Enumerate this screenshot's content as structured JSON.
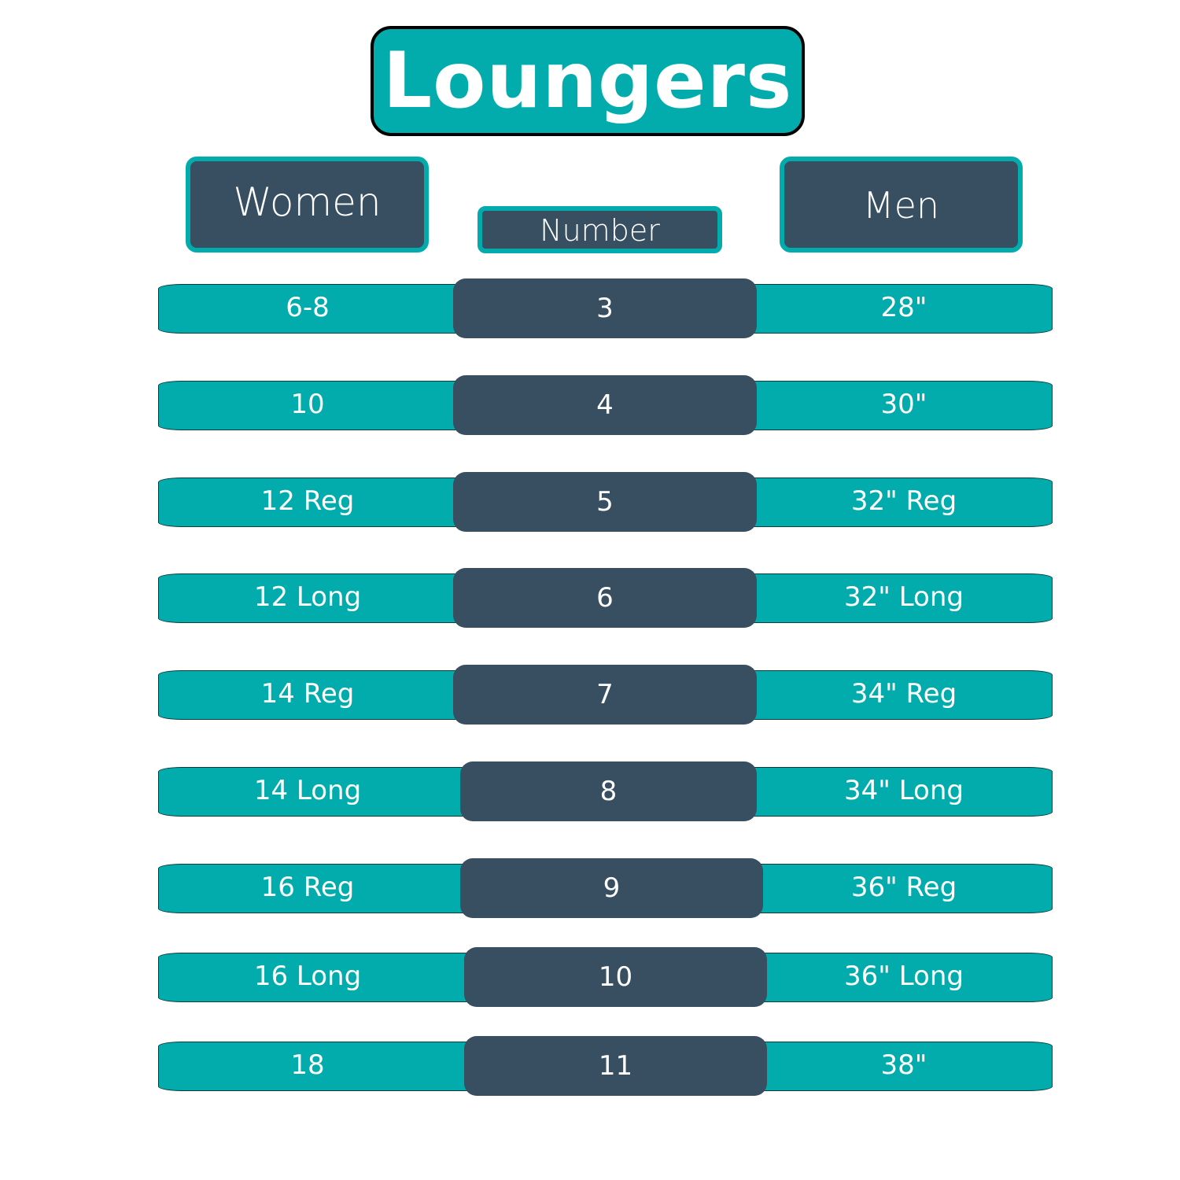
{
  "title": "Loungers",
  "headers": {
    "women": "Women",
    "number": "Number",
    "men": "Men"
  },
  "colors": {
    "teal": "#02acac",
    "slate": "#374f61"
  },
  "rows": [
    {
      "women": "6-8",
      "number": "3",
      "men": "28\""
    },
    {
      "women": "10",
      "number": "4",
      "men": "30\""
    },
    {
      "women": "12 Reg",
      "number": "5",
      "men": "32\" Reg"
    },
    {
      "women": "12 Long",
      "number": "6",
      "men": "32\" Long"
    },
    {
      "women": "14 Reg",
      "number": "7",
      "men": "34\" Reg"
    },
    {
      "women": "14 Long",
      "number": "8",
      "men": "34\" Long"
    },
    {
      "women": "16 Reg",
      "number": "9",
      "men": "36\" Reg"
    },
    {
      "women": "16 Long",
      "number": "10",
      "men": "36\" Long"
    },
    {
      "women": "18",
      "number": "11",
      "men": "38\""
    }
  ]
}
